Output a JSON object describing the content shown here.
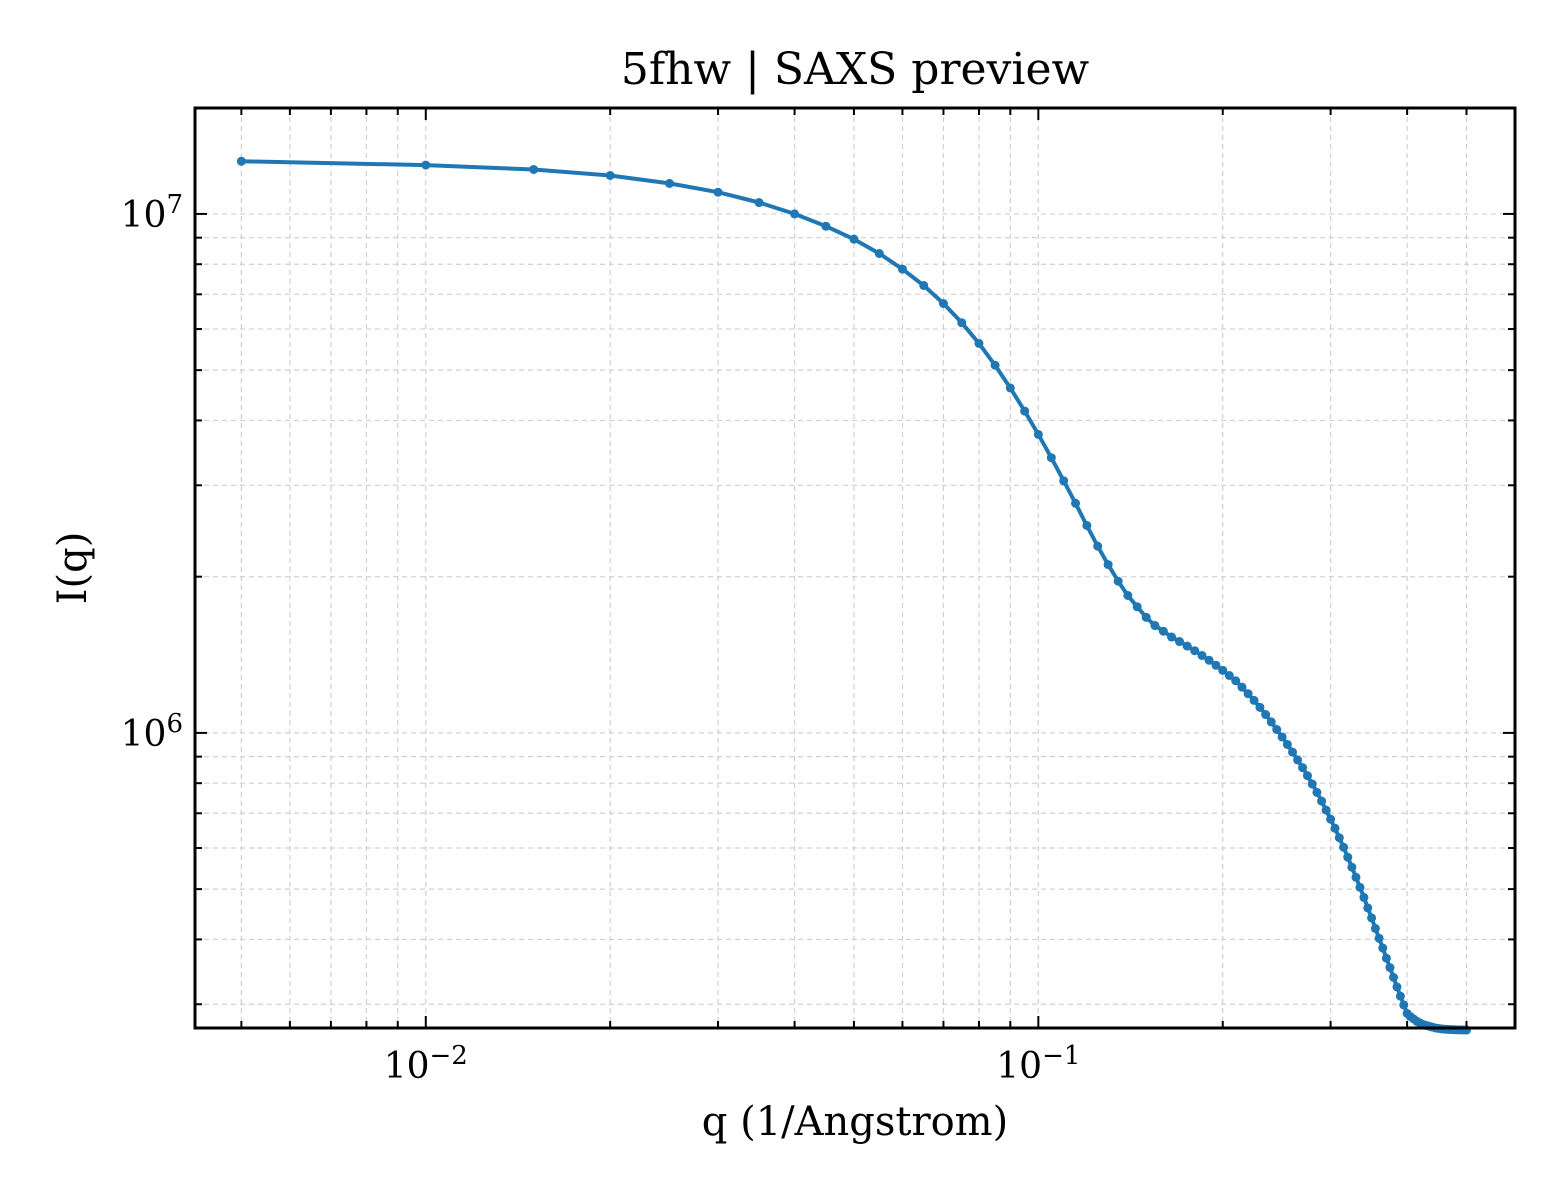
{
  "chart_data": {
    "type": "line",
    "title": "5fhw | SAXS preview",
    "xlabel": "q (1/Angstrom)",
    "ylabel": "I(q)",
    "xscale": "log",
    "yscale": "log",
    "xlim": [
      0.0042,
      0.6
    ],
    "ylim": [
      270000,
      16000000
    ],
    "grid": true,
    "legend": "none",
    "x_ticks": [
      {
        "value": 0.01,
        "base": "10",
        "exp": "−2"
      },
      {
        "value": 0.1,
        "base": "10",
        "exp": "−1"
      }
    ],
    "y_ticks": [
      {
        "value": 1000000,
        "base": "10",
        "exp": "6"
      },
      {
        "value": 10000000,
        "base": "10",
        "exp": "7"
      }
    ],
    "series": [
      {
        "color": "#1f77b4",
        "marker": "circle",
        "x": [
          0.005,
          0.01,
          0.015,
          0.02,
          0.025,
          0.03,
          0.035,
          0.04,
          0.045,
          0.05,
          0.055,
          0.06,
          0.065,
          0.07,
          0.075,
          0.08,
          0.085,
          0.09,
          0.095,
          0.1,
          0.105,
          0.11,
          0.115,
          0.12,
          0.125,
          0.13,
          0.135,
          0.14,
          0.145,
          0.15,
          0.155,
          0.16,
          0.165,
          0.17,
          0.175,
          0.18,
          0.185,
          0.19,
          0.195,
          0.2,
          0.205,
          0.21,
          0.215,
          0.22,
          0.225,
          0.23,
          0.235,
          0.24,
          0.245,
          0.25,
          0.255,
          0.26,
          0.265,
          0.27,
          0.275,
          0.28,
          0.285,
          0.29,
          0.295,
          0.3,
          0.305,
          0.31,
          0.315,
          0.32,
          0.325,
          0.33,
          0.335,
          0.34,
          0.345,
          0.35,
          0.355,
          0.36,
          0.365,
          0.37,
          0.375,
          0.38,
          0.385,
          0.39,
          0.395,
          0.4,
          0.405,
          0.41,
          0.415,
          0.42,
          0.425,
          0.43,
          0.435,
          0.44,
          0.445,
          0.45,
          0.455,
          0.46,
          0.465,
          0.47,
          0.475,
          0.48,
          0.485,
          0.49,
          0.495,
          0.5
        ],
        "y": [
          12630000,
          12420000,
          12180000,
          11860000,
          11450000,
          11010000,
          10520000,
          10000000,
          9470000,
          8940000,
          8390000,
          7830000,
          7280000,
          6720000,
          6170000,
          5630000,
          5110000,
          4620000,
          4170000,
          3760000,
          3390000,
          3060000,
          2770000,
          2510000,
          2290000,
          2110000,
          1960000,
          1840000,
          1750000,
          1670000,
          1610000,
          1570000,
          1530000,
          1500000,
          1470000,
          1440000,
          1410000,
          1380000,
          1350000,
          1320000,
          1290000,
          1260000,
          1225000,
          1190000,
          1155000,
          1120000,
          1085000,
          1050000,
          1015000,
          982000,
          950000,
          918000,
          887000,
          857000,
          827000,
          797000,
          768000,
          739000,
          710000,
          682000,
          655000,
          628000,
          602000,
          576000,
          551000,
          527000,
          504000,
          482000,
          460000,
          440000,
          420000,
          402000,
          385000,
          368000,
          353000,
          338000,
          324000,
          311000,
          299000,
          288000,
          284000,
          281000,
          278000,
          276000,
          274000,
          273000,
          272000,
          271000,
          270000,
          269500,
          269000,
          268700,
          268400,
          268200,
          268000,
          267900,
          267800,
          267700,
          267650,
          267600
        ]
      }
    ]
  }
}
